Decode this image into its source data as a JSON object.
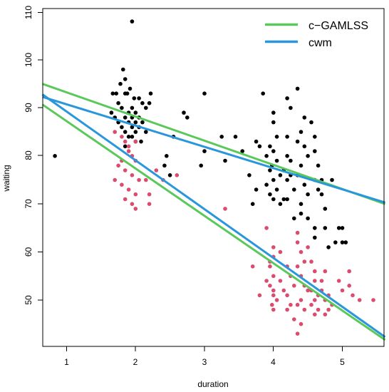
{
  "chart_data": {
    "type": "scatter",
    "xlabel": "duration",
    "ylabel": "waiting",
    "xlim": [
      0.65,
      5.62
    ],
    "ylim": [
      40.5,
      111
    ],
    "xticks": [
      1,
      2,
      3,
      4,
      5
    ],
    "yticks": [
      50,
      60,
      70,
      80,
      90,
      100,
      110
    ],
    "legend": {
      "placement": "top-right",
      "entries": [
        {
          "label": "c−GAMLSS",
          "color": "#5ac85a"
        },
        {
          "label": "cwm",
          "color": "#2a96dc"
        }
      ]
    },
    "lines": [
      {
        "name": "c−GAMLSS",
        "color": "#5ac85a",
        "x": [
          0.65,
          5.62
        ],
        "y": [
          95.0,
          70.0
        ]
      },
      {
        "name": "c−GAMLSS",
        "color": "#5ac85a",
        "x": [
          0.65,
          5.62
        ],
        "y": [
          90.7,
          41.7
        ]
      },
      {
        "name": "cwm",
        "color": "#2a96dc",
        "x": [
          0.65,
          5.62
        ],
        "y": [
          92.3,
          70.3
        ]
      },
      {
        "name": "cwm",
        "color": "#2a96dc",
        "x": [
          0.65,
          5.62
        ],
        "y": [
          92.8,
          42.3
        ]
      }
    ],
    "series": [
      {
        "color": "#000000",
        "points": [
          [
            0.83,
            80
          ],
          [
            1.95,
            108
          ],
          [
            1.82,
            98
          ],
          [
            1.85,
            96
          ],
          [
            1.78,
            95
          ],
          [
            1.92,
            94
          ],
          [
            1.88,
            93
          ],
          [
            1.67,
            93
          ],
          [
            1.72,
            93
          ],
          [
            1.85,
            93
          ],
          [
            1.98,
            92
          ],
          [
            2.05,
            92
          ],
          [
            1.75,
            91
          ],
          [
            2.1,
            91
          ],
          [
            1.8,
            90
          ],
          [
            1.95,
            90
          ],
          [
            2.15,
            90
          ],
          [
            1.65,
            89
          ],
          [
            1.9,
            89
          ],
          [
            2.0,
            89
          ],
          [
            1.7,
            88
          ],
          [
            1.85,
            88
          ],
          [
            1.95,
            88
          ],
          [
            2.05,
            88
          ],
          [
            1.75,
            87
          ],
          [
            1.9,
            87
          ],
          [
            2.0,
            87
          ],
          [
            2.1,
            87
          ],
          [
            1.8,
            86
          ],
          [
            1.95,
            86
          ],
          [
            2.05,
            86
          ],
          [
            1.85,
            85
          ],
          [
            2.0,
            85
          ],
          [
            2.15,
            85
          ],
          [
            1.9,
            84
          ],
          [
            1.95,
            84
          ],
          [
            2.0,
            83
          ],
          [
            2.08,
            83
          ],
          [
            1.85,
            82
          ],
          [
            2.22,
            93
          ],
          [
            2.2,
            91
          ],
          [
            2.7,
            89
          ],
          [
            2.75,
            88
          ],
          [
            2.55,
            84
          ],
          [
            2.45,
            80
          ],
          [
            2.42,
            78
          ],
          [
            2.5,
            76
          ],
          [
            3.0,
            93
          ],
          [
            3.0,
            81
          ],
          [
            2.95,
            78
          ],
          [
            3.25,
            84
          ],
          [
            3.45,
            84
          ],
          [
            3.55,
            81
          ],
          [
            3.3,
            79
          ],
          [
            3.65,
            76
          ],
          [
            3.75,
            73
          ],
          [
            3.7,
            70
          ],
          [
            3.85,
            93
          ],
          [
            3.75,
            83
          ],
          [
            3.8,
            82
          ],
          [
            3.9,
            80
          ],
          [
            3.95,
            77
          ],
          [
            4.0,
            89
          ],
          [
            4.0,
            87
          ],
          [
            4.05,
            84
          ],
          [
            3.95,
            82
          ],
          [
            4.0,
            81
          ],
          [
            4.05,
            79
          ],
          [
            4.1,
            76
          ],
          [
            3.98,
            78
          ],
          [
            4.0,
            75
          ],
          [
            4.05,
            73
          ],
          [
            3.95,
            72
          ],
          [
            4.0,
            71
          ],
          [
            4.1,
            70
          ],
          [
            4.2,
            92
          ],
          [
            4.25,
            90
          ],
          [
            4.2,
            84
          ],
          [
            4.2,
            80
          ],
          [
            4.25,
            79
          ],
          [
            4.15,
            77
          ],
          [
            4.2,
            75
          ],
          [
            4.3,
            73
          ],
          [
            4.2,
            71
          ],
          [
            4.35,
            94
          ],
          [
            4.45,
            88
          ],
          [
            4.4,
            85
          ],
          [
            4.35,
            83
          ],
          [
            4.45,
            82
          ],
          [
            4.5,
            80
          ],
          [
            4.4,
            78
          ],
          [
            4.35,
            76
          ],
          [
            4.45,
            74
          ],
          [
            4.5,
            72
          ],
          [
            4.4,
            70
          ],
          [
            4.4,
            68
          ],
          [
            4.5,
            67
          ],
          [
            4.55,
            87
          ],
          [
            4.6,
            84
          ],
          [
            4.6,
            81
          ],
          [
            4.65,
            78
          ],
          [
            4.6,
            75
          ],
          [
            4.65,
            73
          ],
          [
            4.6,
            65
          ],
          [
            4.6,
            63
          ],
          [
            4.7,
            75
          ],
          [
            4.7,
            72
          ],
          [
            4.75,
            69
          ],
          [
            4.75,
            65
          ],
          [
            4.8,
            61
          ],
          [
            4.85,
            75
          ],
          [
            4.9,
            62
          ],
          [
            4.95,
            65
          ],
          [
            5.0,
            65
          ],
          [
            5.0,
            62
          ],
          [
            5.05,
            62
          ],
          [
            4.3,
            67
          ],
          [
            4.15,
            71
          ],
          [
            3.9,
            74
          ],
          [
            4.25,
            76
          ]
        ]
      },
      {
        "color": "#dc4b6e",
        "points": [
          [
            1.7,
            85
          ],
          [
            1.8,
            84
          ],
          [
            1.85,
            83
          ],
          [
            1.9,
            82
          ],
          [
            1.95,
            80
          ],
          [
            2.0,
            79
          ],
          [
            1.75,
            78
          ],
          [
            1.85,
            77
          ],
          [
            1.95,
            76
          ],
          [
            2.05,
            75
          ],
          [
            1.7,
            75
          ],
          [
            1.8,
            74
          ],
          [
            1.9,
            73
          ],
          [
            2.0,
            72
          ],
          [
            1.85,
            71
          ],
          [
            1.95,
            70
          ],
          [
            2.0,
            69
          ],
          [
            2.15,
            75
          ],
          [
            2.2,
            72
          ],
          [
            2.2,
            70
          ],
          [
            2.3,
            77
          ],
          [
            2.4,
            75
          ],
          [
            2.6,
            76
          ],
          [
            2.0,
            83
          ],
          [
            1.9,
            81
          ],
          [
            1.8,
            79
          ],
          [
            3.3,
            69
          ],
          [
            3.7,
            57
          ],
          [
            3.9,
            65
          ],
          [
            4.0,
            61
          ],
          [
            4.0,
            59
          ],
          [
            3.95,
            58
          ],
          [
            3.95,
            57
          ],
          [
            4.0,
            55
          ],
          [
            3.9,
            54
          ],
          [
            3.95,
            53
          ],
          [
            4.0,
            52
          ],
          [
            4.0,
            51
          ],
          [
            4.05,
            50
          ],
          [
            3.98,
            49
          ],
          [
            4.0,
            48
          ],
          [
            4.1,
            54
          ],
          [
            4.15,
            52
          ],
          [
            4.1,
            60
          ],
          [
            4.2,
            57
          ],
          [
            4.25,
            55
          ],
          [
            4.3,
            53
          ],
          [
            4.2,
            51
          ],
          [
            4.25,
            49
          ],
          [
            4.2,
            48
          ],
          [
            4.35,
            64
          ],
          [
            4.35,
            62
          ],
          [
            4.4,
            60
          ],
          [
            4.45,
            58
          ],
          [
            4.35,
            57
          ],
          [
            4.4,
            55
          ],
          [
            4.45,
            53
          ],
          [
            4.5,
            52
          ],
          [
            4.4,
            50
          ],
          [
            4.35,
            49
          ],
          [
            4.45,
            48
          ],
          [
            4.3,
            46
          ],
          [
            4.35,
            43
          ],
          [
            4.4,
            45
          ],
          [
            4.55,
            58
          ],
          [
            4.6,
            56
          ],
          [
            4.6,
            54
          ],
          [
            4.55,
            52
          ],
          [
            4.65,
            51
          ],
          [
            4.6,
            50
          ],
          [
            4.55,
            49
          ],
          [
            4.65,
            48
          ],
          [
            4.75,
            56
          ],
          [
            4.7,
            54
          ],
          [
            4.7,
            52
          ],
          [
            4.8,
            51
          ],
          [
            4.75,
            50
          ],
          [
            4.85,
            49
          ],
          [
            4.8,
            48
          ],
          [
            4.75,
            47
          ],
          [
            4.95,
            54
          ],
          [
            5.0,
            52
          ],
          [
            5.1,
            56
          ],
          [
            5.1,
            53
          ],
          [
            5.25,
            50
          ],
          [
            5.45,
            50
          ],
          [
            5.15,
            51
          ],
          [
            4.5,
            61
          ],
          [
            4.6,
            47
          ],
          [
            3.8,
            51
          ]
        ]
      }
    ]
  }
}
